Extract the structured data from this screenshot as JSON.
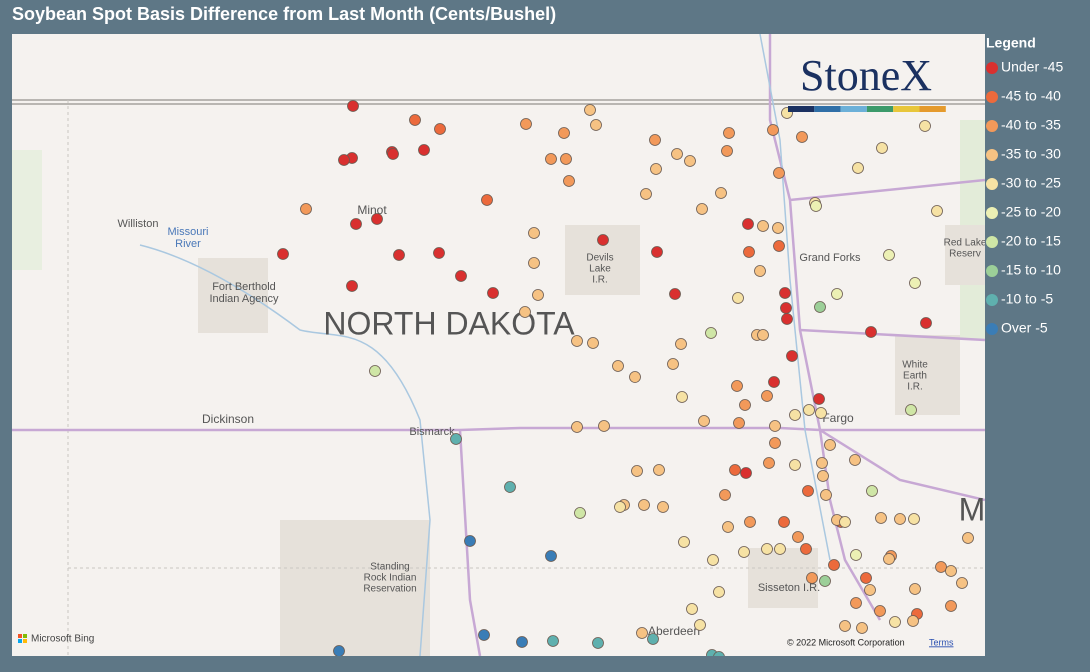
{
  "title": "Soybean Spot Basis Difference from Last Month (Cents/Bushel)",
  "legend": {
    "title": "Legend",
    "items": [
      {
        "label": "Under -45",
        "color": "#d9302f"
      },
      {
        "label": "-45 to -40",
        "color": "#ec6a3c"
      },
      {
        "label": "-40 to -35",
        "color": "#f2995a"
      },
      {
        "label": "-35 to -30",
        "color": "#f6c283"
      },
      {
        "label": "-30 to -25",
        "color": "#f6e2a4"
      },
      {
        "label": "-25 to -20",
        "color": "#ecf0b4"
      },
      {
        "label": "-20 to -15",
        "color": "#cfe6a6"
      },
      {
        "label": "-15 to -10",
        "color": "#9ccf98"
      },
      {
        "label": "-10 to -5",
        "color": "#5fb0ae"
      },
      {
        "label": "Over -5",
        "color": "#3a7db6"
      }
    ]
  },
  "map": {
    "logo": "StoneX",
    "labels": [
      [
        "Williston"
      ],
      [
        "Missouri",
        "River"
      ],
      [
        "Fort Berthold",
        "Indian Agency"
      ],
      [
        "Minot"
      ],
      [
        "NORTH DAKOTA"
      ],
      [
        "Devils",
        "Lake",
        "I.R."
      ],
      [
        "Grand Forks"
      ],
      [
        "Red Lake",
        "Reserv"
      ],
      [
        "White",
        "Earth",
        "I.R."
      ],
      [
        "Dickinson"
      ],
      [
        "Bismarck"
      ],
      [
        "Fargo"
      ],
      [
        "Standing",
        "Rock Indian",
        "Reservation"
      ],
      [
        "Sisseton I.R."
      ],
      [
        "Aberdeen"
      ],
      [
        "M"
      ]
    ],
    "attribution": "Microsoft Bing",
    "copyright": "© 2022 Microsoft Corporation",
    "terms": "Terms"
  }
}
